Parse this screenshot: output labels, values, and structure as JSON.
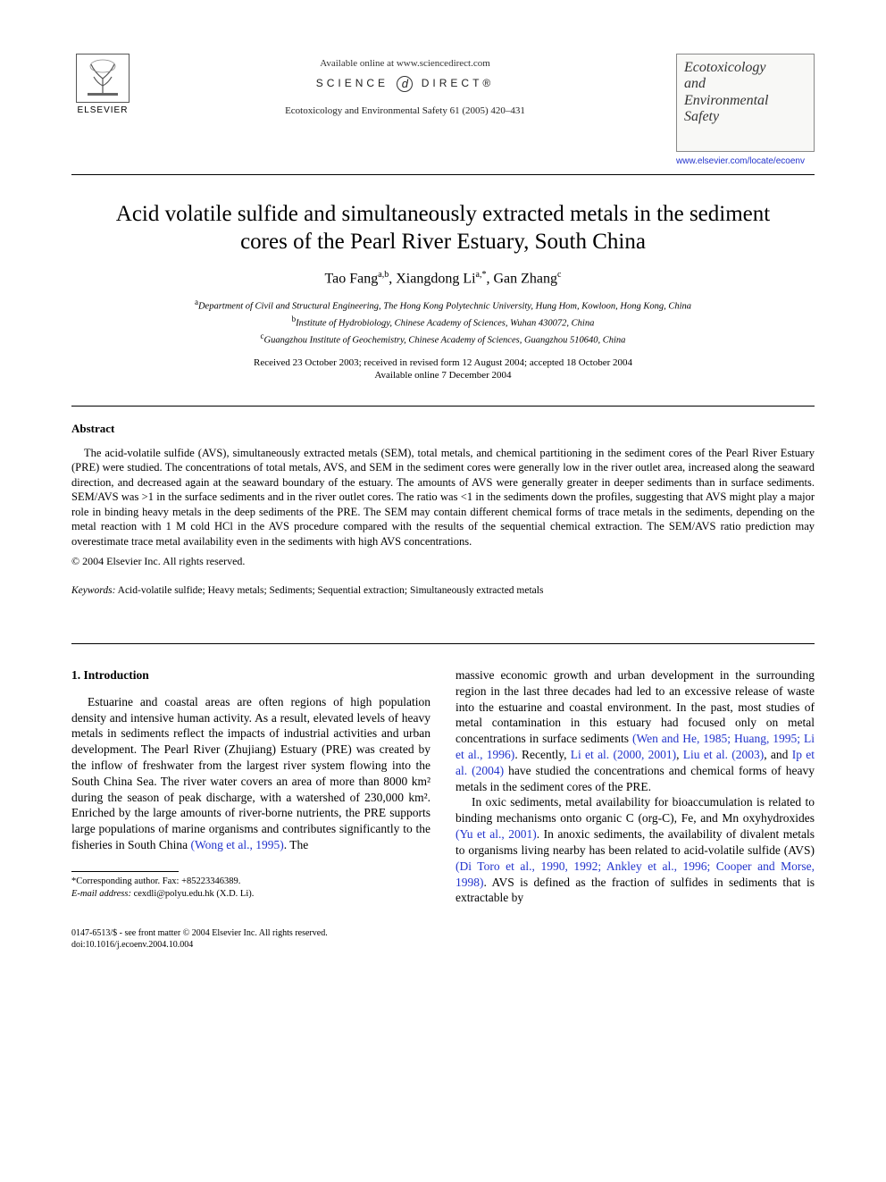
{
  "header": {
    "publisher_name": "ELSEVIER",
    "available_line": "Available online at www.sciencedirect.com",
    "sciencedirect_left": "SCIENCE",
    "sciencedirect_right": "DIRECT®",
    "journal_ref": "Ecotoxicology and Environmental Safety 61 (2005) 420–431",
    "journal_title_line1": "Ecotoxicology",
    "journal_title_line2": "and",
    "journal_title_line3": "Environmental",
    "journal_title_line4": "Safety",
    "journal_url": "www.elsevier.com/locate/ecoenv"
  },
  "title": "Acid volatile sulfide and simultaneously extracted metals in the sediment cores of the Pearl River Estuary, South China",
  "authors_html": "Tao Fang<sup>a,b</sup>, Xiangdong Li<sup>a,*</sup>, Gan Zhang<sup>c</sup>",
  "affiliations": {
    "a": "Department of Civil and Structural Engineering, The Hong Kong Polytechnic University, Hung Hom, Kowloon, Hong Kong, China",
    "b": "Institute of Hydrobiology, Chinese Academy of Sciences, Wuhan 430072, China",
    "c": "Guangzhou Institute of Geochemistry, Chinese Academy of Sciences, Guangzhou 510640, China"
  },
  "dates_line1": "Received 23 October 2003; received in revised form 12 August 2004; accepted 18 October 2004",
  "dates_line2": "Available online 7 December 2004",
  "abstract": {
    "heading": "Abstract",
    "body": "The acid-volatile sulfide (AVS), simultaneously extracted metals (SEM), total metals, and chemical partitioning in the sediment cores of the Pearl River Estuary (PRE) were studied. The concentrations of total metals, AVS, and SEM in the sediment cores were generally low in the river outlet area, increased along the seaward direction, and decreased again at the seaward boundary of the estuary. The amounts of AVS were generally greater in deeper sediments than in surface sediments. SEM/AVS was >1 in the surface sediments and in the river outlet cores. The ratio was <1 in the sediments down the profiles, suggesting that AVS might play a major role in binding heavy metals in the deep sediments of the PRE. The SEM may contain different chemical forms of trace metals in the sediments, depending on the metal reaction with 1 M cold HCl in the AVS procedure compared with the results of the sequential chemical extraction. The SEM/AVS ratio prediction may overestimate trace metal availability even in the sediments with high AVS concentrations.",
    "copyright": "© 2004 Elsevier Inc. All rights reserved."
  },
  "keywords": {
    "label": "Keywords:",
    "text": " Acid-volatile sulfide; Heavy metals; Sediments; Sequential extraction; Simultaneously extracted metals"
  },
  "intro": {
    "heading": "1. Introduction",
    "left_para": "Estuarine and coastal areas are often regions of high population density and intensive human activity. As a result, elevated levels of heavy metals in sediments reflect the impacts of industrial activities and urban development. The Pearl River (Zhujiang) Estuary (PRE) was created by the inflow of freshwater from the largest river system flowing into the South China Sea. The river water covers an area of more than 8000 km² during the season of peak discharge, with a watershed of 230,000 km². Enriched by the large amounts of river-borne nutrients, the PRE supports large populations of marine organisms and contributes significantly to the fisheries in South China ",
    "left_cite1": "(Wong et al., 1995)",
    "left_tail": ". The",
    "right_p1a": "massive economic growth and urban development in the surrounding region in the last three decades had led to an excessive release of waste into the estuarine and coastal environment. In the past, most studies of metal contamination in this estuary had focused only on metal concentrations in surface sediments ",
    "right_p1_cite1": "(Wen and He, 1985; Huang, 1995; Li et al., 1996)",
    "right_p1b": ". Recently, ",
    "right_p1_cite2": "Li et al. (2000, 2001)",
    "right_p1c": ", ",
    "right_p1_cite3": "Liu et al. (2003)",
    "right_p1d": ", and ",
    "right_p1_cite4": "Ip et al. (2004)",
    "right_p1e": " have studied the concentrations and chemical forms of heavy metals in the sediment cores of the PRE.",
    "right_p2a": "In oxic sediments, metal availability for bioaccumulation is related to binding mechanisms onto organic C (org-C), Fe, and Mn oxyhydroxides ",
    "right_p2_cite1": "(Yu et al., 2001)",
    "right_p2b": ". In anoxic sediments, the availability of divalent metals to organisms living nearby has been related to acid-volatile sulfide (AVS) ",
    "right_p2_cite2": "(Di Toro et al., 1990, 1992; Ankley et al., 1996; Cooper and Morse, 1998)",
    "right_p2c": ". AVS is defined as the fraction of sulfides in sediments that is extractable by"
  },
  "footnote": {
    "corr": "*Corresponding author. Fax: +85223346389.",
    "email_label": "E-mail address:",
    "email": " cexdli@polyu.edu.hk (X.D. Li)."
  },
  "bottom": {
    "line1": "0147-6513/$ - see front matter © 2004 Elsevier Inc. All rights reserved.",
    "line2": "doi:10.1016/j.ecoenv.2004.10.004"
  },
  "colors": {
    "text": "#000000",
    "link": "#2233cc",
    "background": "#ffffff",
    "box_border": "#888888"
  }
}
